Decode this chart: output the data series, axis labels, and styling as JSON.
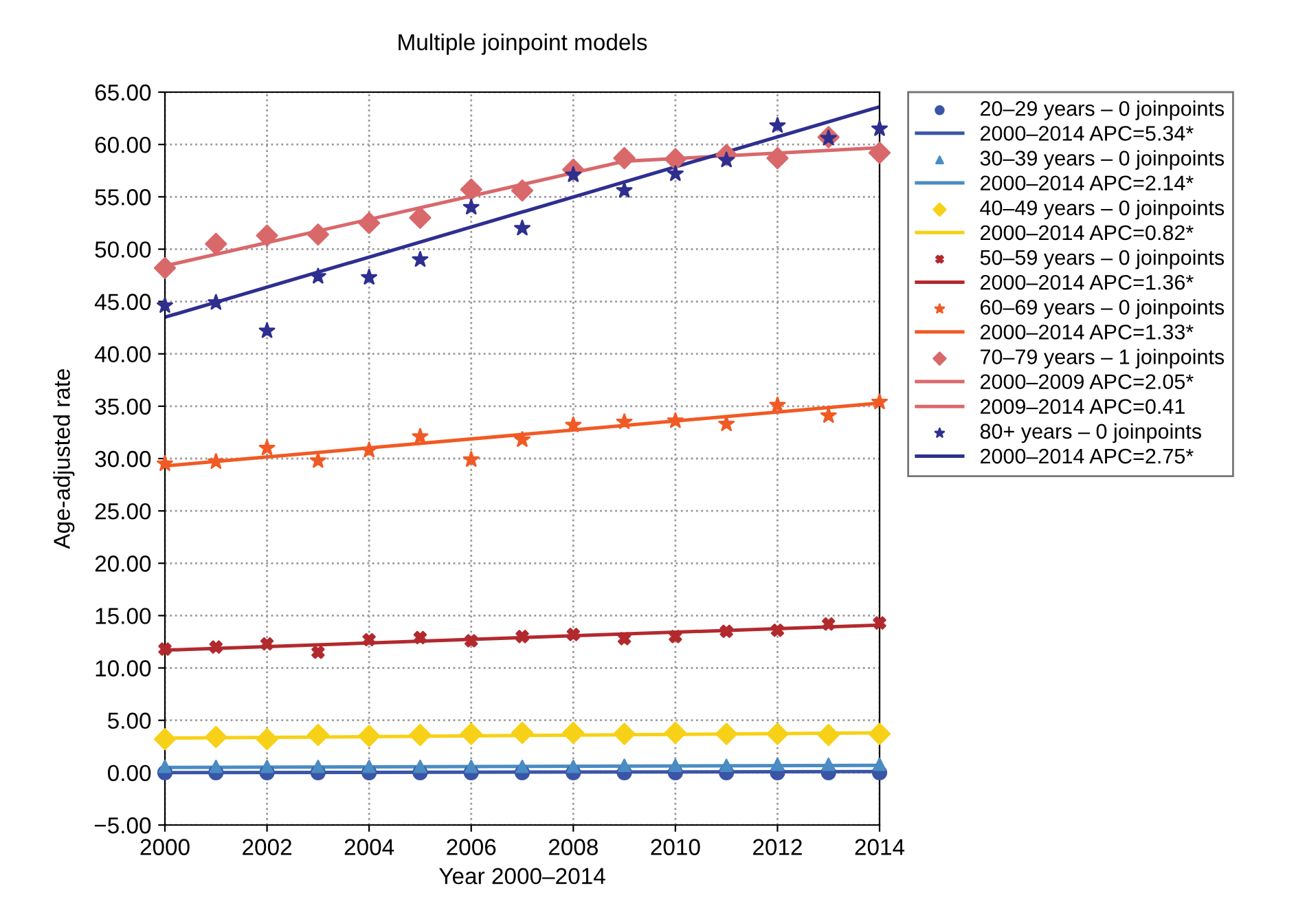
{
  "chart_data": {
    "type": "scatter",
    "title": "Multiple joinpoint models",
    "xlabel": "Year 2000–2014",
    "ylabel": "Age-adjusted rate",
    "x": [
      2000,
      2001,
      2002,
      2003,
      2004,
      2005,
      2006,
      2007,
      2008,
      2009,
      2010,
      2011,
      2012,
      2013,
      2014
    ],
    "series": [
      {
        "name": "20–29 years – 0 joinpoints",
        "marker": "circle",
        "color": "#3a55a6",
        "values": [
          0.0,
          0.0,
          0.0,
          0.0,
          0.0,
          0.0,
          0.0,
          0.0,
          0.0,
          0.0,
          0.0,
          0.0,
          0.0,
          0.0,
          0.0
        ]
      },
      {
        "name": "2000–2014 APC=5.34*",
        "type": "line",
        "color": "#3a55a6",
        "x": [
          2000,
          2014
        ],
        "values": [
          0.0,
          0.1
        ]
      },
      {
        "name": "30–39 years – 0 joinpoints",
        "marker": "triangle",
        "color": "#4a8cc4",
        "values": [
          0.6,
          0.6,
          0.6,
          0.6,
          0.6,
          0.6,
          0.6,
          0.6,
          0.6,
          0.7,
          0.7,
          0.7,
          0.8,
          0.8,
          0.8
        ]
      },
      {
        "name": "2000–2014 APC=2.14*",
        "type": "line",
        "color": "#4a8cc4",
        "x": [
          2000,
          2014
        ],
        "values": [
          0.5,
          0.7
        ]
      },
      {
        "name": "40–49 years – 0 joinpoints",
        "marker": "diamond",
        "color": "#f7d117",
        "values": [
          3.2,
          3.4,
          3.2,
          3.6,
          3.5,
          3.6,
          3.7,
          3.8,
          3.8,
          3.7,
          3.8,
          3.7,
          3.7,
          3.6,
          3.7
        ]
      },
      {
        "name": "2000–2014 APC=0.82*",
        "type": "line",
        "color": "#f7d117",
        "x": [
          2000,
          2014
        ],
        "values": [
          3.3,
          3.8
        ]
      },
      {
        "name": "50–59 years – 0 joinpoints",
        "marker": "cross",
        "color": "#b22a2e",
        "values": [
          11.8,
          12.0,
          12.3,
          11.5,
          12.7,
          12.9,
          12.6,
          13.0,
          13.2,
          12.8,
          13.0,
          13.5,
          13.6,
          14.2,
          14.3
        ]
      },
      {
        "name": "2000–2014 APC=1.36*",
        "type": "line",
        "color": "#b22a2e",
        "x": [
          2000,
          2014
        ],
        "values": [
          11.7,
          14.1
        ]
      },
      {
        "name": "60–69 years – 0 joinpoints",
        "marker": "star",
        "color": "#f15a24",
        "values": [
          29.5,
          29.7,
          31.0,
          29.8,
          30.8,
          32.1,
          29.9,
          31.8,
          33.2,
          33.5,
          33.6,
          33.3,
          35.1,
          34.1,
          35.4
        ]
      },
      {
        "name": "2000–2014 APC=1.33*",
        "type": "line",
        "color": "#f15a24",
        "x": [
          2000,
          2014
        ],
        "values": [
          29.3,
          35.3
        ]
      },
      {
        "name": "70–79 years – 1 joinpoints",
        "marker": "diamond",
        "color": "#d9686b",
        "values": [
          48.2,
          50.5,
          51.3,
          51.4,
          52.5,
          53.0,
          55.7,
          55.6,
          57.6,
          58.7,
          58.6,
          59.0,
          58.7,
          60.7,
          59.2
        ]
      },
      {
        "name": "2000–2009 APC=2.05*",
        "type": "line",
        "color": "#d9686b",
        "x": [
          2000,
          2009
        ],
        "values": [
          48.4,
          58.4
        ]
      },
      {
        "name": "2009–2014 APC=0.41",
        "type": "line",
        "color": "#d9686b",
        "x": [
          2009,
          2014
        ],
        "values": [
          58.4,
          59.7
        ]
      },
      {
        "name": "80+ years – 0 joinpoints",
        "marker": "star",
        "color": "#2e2f8f",
        "values": [
          44.6,
          44.9,
          42.2,
          47.4,
          47.3,
          49.0,
          54.0,
          52.0,
          57.1,
          55.6,
          57.2,
          58.5,
          61.8,
          60.6,
          61.5
        ]
      },
      {
        "name": "2000–2014 APC=2.75*",
        "type": "line",
        "color": "#2e2f8f",
        "x": [
          2000,
          2014
        ],
        "values": [
          43.5,
          63.6
        ]
      }
    ],
    "xlim": [
      2000,
      2014
    ],
    "xticks": [
      2000,
      2002,
      2004,
      2006,
      2008,
      2010,
      2012,
      2014
    ],
    "ylim": [
      -5,
      65
    ],
    "yticks": [
      {
        "value": -5,
        "label": "−5.00"
      },
      {
        "value": 0,
        "label": "0.00"
      },
      {
        "value": 5,
        "label": "5.00"
      },
      {
        "value": 10,
        "label": "10.00"
      },
      {
        "value": 15,
        "label": "15.00"
      },
      {
        "value": 20,
        "label": "20.00"
      },
      {
        "value": 25,
        "label": "25.00"
      },
      {
        "value": 30,
        "label": "30.00"
      },
      {
        "value": 35,
        "label": "35.00"
      },
      {
        "value": 40,
        "label": "40.00"
      },
      {
        "value": 45,
        "label": "45.00"
      },
      {
        "value": 50,
        "label": "50.00"
      },
      {
        "value": 55,
        "label": "55.00"
      },
      {
        "value": 60,
        "label": "60.00"
      },
      {
        "value": 65,
        "label": "65.00"
      }
    ],
    "grid": true,
    "legend": "right"
  }
}
